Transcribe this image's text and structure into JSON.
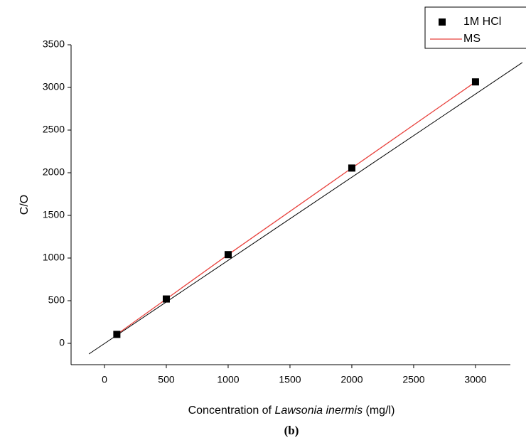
{
  "chart_data": {
    "type": "scatter",
    "ylabel": "C/O",
    "xlabel": [
      "Concentration of",
      "Lawsonia inermis",
      "(mg/l)"
    ],
    "caption": "(b)",
    "x": [
      100,
      500,
      1000,
      2000,
      3000
    ],
    "series": [
      {
        "name": "1M HCl",
        "color": "#000000",
        "mode": "markers",
        "values": [
          105,
          520,
          1040,
          2055,
          3065
        ]
      },
      {
        "name": "MS",
        "color": "#e8413c",
        "mode": "line",
        "values": [
          105,
          520,
          1040,
          2055,
          3065
        ]
      }
    ],
    "fit_line": {
      "x": [
        -126,
        3379
      ],
      "y": [
        -125,
        3292
      ],
      "color": "#000000"
    },
    "xlim": [
      -270,
      3282
    ],
    "ylim": [
      -250,
      3500
    ],
    "xticks": [
      0,
      500,
      1000,
      1500,
      2000,
      2500,
      3000
    ],
    "yticks": [
      0,
      500,
      1000,
      1500,
      2000,
      2500,
      3000,
      3500
    ],
    "grid": false,
    "legend": "top-right"
  }
}
